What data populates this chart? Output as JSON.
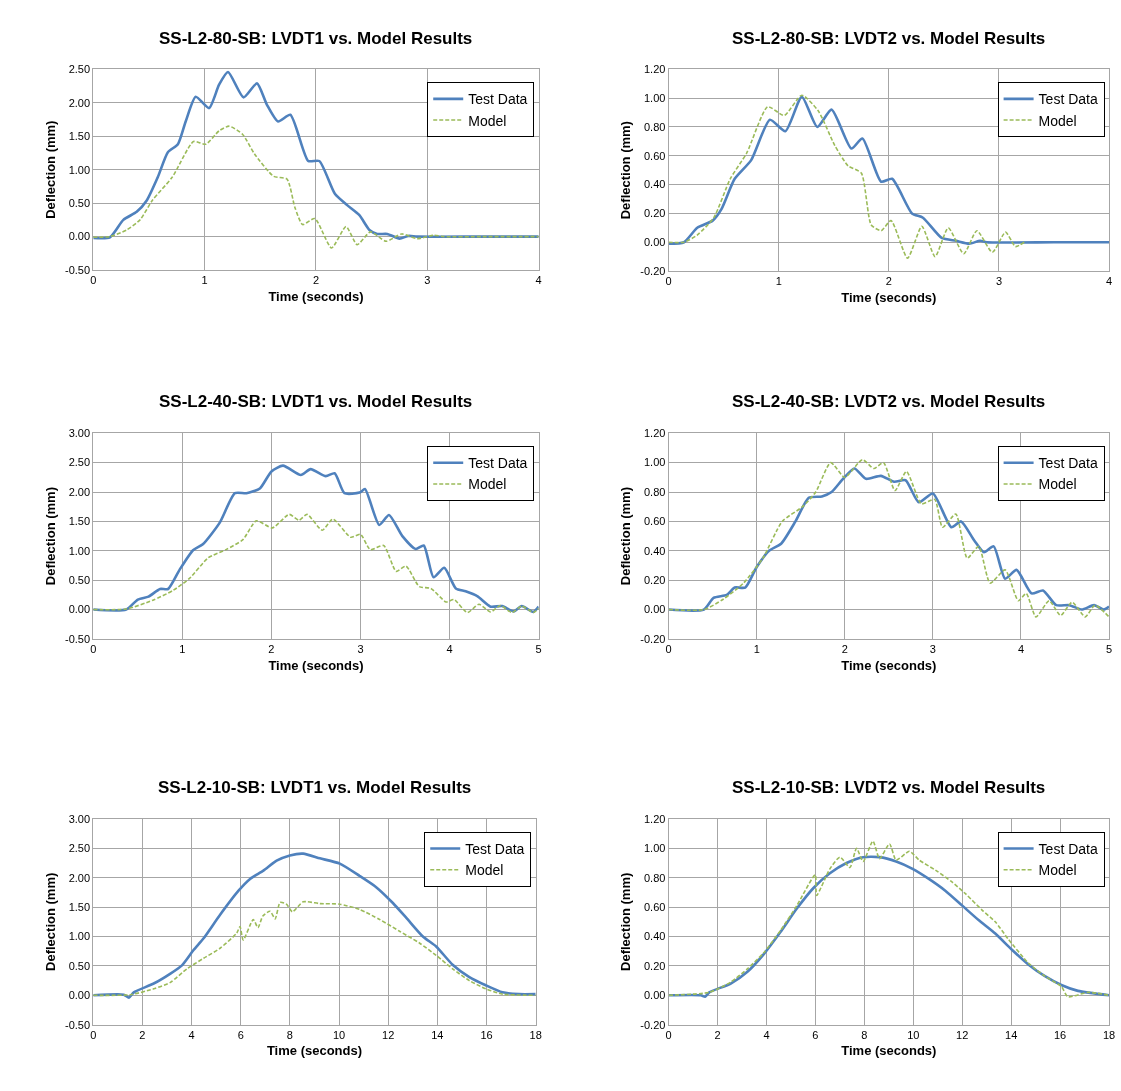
{
  "chart_data": [
    {
      "type": "line",
      "title": "SS-L2-80-SB: LVDT1 vs. Model Results",
      "xlabel": "Time (seconds)",
      "ylabel": "Deflection (mm)",
      "xlim": [
        0,
        4
      ],
      "ylim": [
        -0.5,
        2.5
      ],
      "xticks": [
        0,
        1,
        2,
        3,
        4
      ],
      "yticks": [
        {
          "value": -0.5,
          "label": "-0.50"
        },
        {
          "value": 0,
          "label": "0.00"
        },
        {
          "value": 0.5,
          "label": "0.50"
        },
        {
          "value": 1,
          "label": "1.00"
        },
        {
          "value": 1.5,
          "label": "1.50"
        },
        {
          "value": 2,
          "label": "2.00"
        },
        {
          "value": 2.5,
          "label": "2.50"
        }
      ],
      "grid": true,
      "legend": "top right",
      "series": [
        {
          "name": "Test Data",
          "color": "#4f81bd",
          "line_style": "solid",
          "x": [
            0,
            0.15,
            0.27,
            0.39,
            0.48,
            0.58,
            0.67,
            0.76,
            0.83,
            0.92,
            1.04,
            1.13,
            1.21,
            1.35,
            1.47,
            1.56,
            1.66,
            1.77,
            1.93,
            2.03,
            2.17,
            2.28,
            2.39,
            2.48,
            2.55,
            2.64,
            2.75,
            2.83,
            2.91,
            3.5,
            4
          ],
          "values": [
            -0.02,
            -0.01,
            0.25,
            0.37,
            0.54,
            0.89,
            1.26,
            1.38,
            1.72,
            2.09,
            1.92,
            2.27,
            2.46,
            2.08,
            2.29,
            1.97,
            1.72,
            1.82,
            1.13,
            1.13,
            0.64,
            0.47,
            0.32,
            0.1,
            0.04,
            0.04,
            -0.03,
            0.01,
            0,
            0,
            0
          ]
        },
        {
          "name": "Model",
          "color": "#9bbb59",
          "line_style": "dashed",
          "x": [
            0,
            0.15,
            0.3,
            0.42,
            0.53,
            0.71,
            0.9,
            1.01,
            1.13,
            1.22,
            1.34,
            1.45,
            1.62,
            1.74,
            1.81,
            1.88,
            1.99,
            2.14,
            2.27,
            2.37,
            2.49,
            2.63,
            2.77,
            2.91,
            3.06,
            3.15,
            3.5,
            4
          ],
          "values": [
            -0.01,
            0,
            0.1,
            0.25,
            0.54,
            0.89,
            1.42,
            1.38,
            1.58,
            1.65,
            1.53,
            1.23,
            0.9,
            0.86,
            0.44,
            0.18,
            0.27,
            -0.17,
            0.15,
            -0.12,
            0.07,
            -0.07,
            0.04,
            -0.03,
            0.02,
            0,
            0,
            0
          ]
        }
      ]
    },
    {
      "type": "line",
      "title": "SS-L2-80-SB: LVDT2 vs. Model Results",
      "xlabel": "Time (seconds)",
      "ylabel": "Deflection (mm)",
      "xlim": [
        0,
        4
      ],
      "ylim": [
        -0.2,
        1.2
      ],
      "xticks": [
        0,
        1,
        2,
        3,
        4
      ],
      "yticks": [
        {
          "value": -0.2,
          "label": "-0.20"
        },
        {
          "value": 0,
          "label": "0.00"
        },
        {
          "value": 0.2,
          "label": "0.20"
        },
        {
          "value": 0.4,
          "label": "0.40"
        },
        {
          "value": 0.6,
          "label": "0.60"
        },
        {
          "value": 0.8,
          "label": "0.80"
        },
        {
          "value": 1,
          "label": "1.00"
        },
        {
          "value": 1.2,
          "label": "1.20"
        }
      ],
      "grid": true,
      "legend": "top right",
      "series": [
        {
          "name": "Test Data",
          "color": "#4f81bd",
          "line_style": "solid",
          "x": [
            0,
            0.14,
            0.26,
            0.4,
            0.48,
            0.6,
            0.75,
            0.92,
            1.06,
            1.21,
            1.35,
            1.48,
            1.66,
            1.76,
            1.93,
            2.03,
            2.21,
            2.31,
            2.48,
            2.61,
            2.73,
            2.83,
            2.89,
            3.5,
            4
          ],
          "values": [
            -0.01,
            0,
            0.1,
            0.15,
            0.23,
            0.44,
            0.57,
            0.85,
            0.77,
            1.01,
            0.8,
            0.92,
            0.65,
            0.72,
            0.42,
            0.44,
            0.2,
            0.17,
            0.03,
            0.01,
            -0.01,
            0.01,
            0,
            0,
            0
          ]
        },
        {
          "name": "Model",
          "color": "#9bbb59",
          "line_style": "dashed",
          "x": [
            0,
            0.14,
            0.26,
            0.41,
            0.56,
            0.71,
            0.9,
            1.05,
            1.21,
            1.36,
            1.51,
            1.63,
            1.75,
            1.84,
            1.93,
            2.02,
            2.17,
            2.3,
            2.42,
            2.54,
            2.68,
            2.8,
            2.94,
            3.06,
            3.15,
            3.23
          ],
          "values": [
            0,
            0,
            0.05,
            0.17,
            0.44,
            0.62,
            0.94,
            0.88,
            1.02,
            0.91,
            0.67,
            0.53,
            0.48,
            0.12,
            0.08,
            0.15,
            -0.11,
            0.11,
            -0.1,
            0.1,
            -0.08,
            0.08,
            -0.07,
            0.07,
            -0.03,
            0
          ]
        }
      ]
    },
    {
      "type": "line",
      "title": "SS-L2-40-SB: LVDT1 vs. Model Results",
      "xlabel": "Time (seconds)",
      "ylabel": "Deflection (mm)",
      "xlim": [
        0,
        5
      ],
      "ylim": [
        -0.5,
        3
      ],
      "xticks": [
        0,
        1,
        2,
        3,
        4,
        5
      ],
      "yticks": [
        {
          "value": -0.5,
          "label": "-0.50"
        },
        {
          "value": 0,
          "label": "0.00"
        },
        {
          "value": 0.5,
          "label": "0.50"
        },
        {
          "value": 1,
          "label": "1.00"
        },
        {
          "value": 1.5,
          "label": "1.50"
        },
        {
          "value": 2,
          "label": "2.00"
        },
        {
          "value": 2.5,
          "label": "2.50"
        },
        {
          "value": 3,
          "label": "3.00"
        }
      ],
      "grid": true,
      "legend": "top right",
      "series": [
        {
          "name": "Test Data",
          "color": "#4f81bd",
          "line_style": "solid",
          "x": [
            0,
            0.37,
            0.5,
            0.62,
            0.75,
            0.84,
            0.97,
            1.12,
            1.23,
            1.42,
            1.59,
            1.72,
            1.87,
            2.0,
            2.13,
            2.33,
            2.44,
            2.61,
            2.71,
            2.82,
            2.99,
            3.05,
            3.21,
            3.32,
            3.47,
            3.62,
            3.71,
            3.82,
            3.94,
            4.07,
            4.18,
            4.31,
            4.46,
            4.59,
            4.72,
            4.81,
            4.94,
            5
          ],
          "values": [
            0,
            0,
            0.17,
            0.22,
            0.35,
            0.35,
            0.68,
            1.01,
            1.11,
            1.48,
            1.98,
            1.98,
            2.06,
            2.35,
            2.45,
            2.29,
            2.39,
            2.27,
            2.32,
            1.98,
            1.99,
            2.05,
            1.44,
            1.61,
            1.25,
            1.03,
            1.09,
            0.55,
            0.71,
            0.36,
            0.31,
            0.23,
            0.05,
            0.06,
            -0.03,
            0.06,
            -0.04,
            0.05
          ]
        },
        {
          "name": "Model",
          "color": "#9bbb59",
          "line_style": "dashed",
          "x": [
            0,
            0.37,
            0.67,
            0.9,
            1.08,
            1.29,
            1.49,
            1.68,
            1.83,
            2.01,
            2.2,
            2.31,
            2.4,
            2.57,
            2.69,
            2.89,
            3.0,
            3.11,
            3.26,
            3.4,
            3.51,
            3.66,
            3.79,
            3.96,
            4.05,
            4.2,
            4.33,
            4.46,
            4.57,
            4.7,
            4.81,
            4.94,
            5
          ],
          "values": [
            0,
            0.01,
            0.16,
            0.33,
            0.53,
            0.88,
            1.02,
            1.19,
            1.51,
            1.39,
            1.62,
            1.52,
            1.62,
            1.35,
            1.54,
            1.23,
            1.28,
            1.02,
            1.09,
            0.65,
            0.74,
            0.39,
            0.36,
            0.13,
            0.17,
            -0.05,
            0.09,
            -0.04,
            0.07,
            -0.05,
            0.06,
            -0.05,
            0.02
          ]
        }
      ]
    },
    {
      "type": "line",
      "title": "SS-L2-40-SB: LVDT2 vs. Model Results",
      "xlabel": "Time (seconds)",
      "ylabel": "Deflection (mm)",
      "xlim": [
        0,
        5
      ],
      "ylim": [
        -0.2,
        1.2
      ],
      "xticks": [
        0,
        1,
        2,
        3,
        4,
        5
      ],
      "yticks": [
        {
          "value": -0.2,
          "label": "-0.20"
        },
        {
          "value": 0,
          "label": "0.00"
        },
        {
          "value": 0.2,
          "label": "0.20"
        },
        {
          "value": 0.4,
          "label": "0.40"
        },
        {
          "value": 0.6,
          "label": "0.60"
        },
        {
          "value": 0.8,
          "label": "0.80"
        },
        {
          "value": 1,
          "label": "1.00"
        },
        {
          "value": 1.2,
          "label": "1.20"
        }
      ],
      "grid": true,
      "legend": "top right",
      "series": [
        {
          "name": "Test Data",
          "color": "#4f81bd",
          "line_style": "solid",
          "x": [
            0,
            0.4,
            0.51,
            0.66,
            0.75,
            0.87,
            1.0,
            1.14,
            1.28,
            1.44,
            1.59,
            1.74,
            1.85,
            1.98,
            2.11,
            2.24,
            2.41,
            2.56,
            2.69,
            2.84,
            3.0,
            3.21,
            3.32,
            3.47,
            3.58,
            3.69,
            3.82,
            3.95,
            4.12,
            4.25,
            4.4,
            4.55,
            4.69,
            4.83,
            4.94,
            5
          ],
          "values": [
            0,
            0,
            0.08,
            0.1,
            0.15,
            0.15,
            0.29,
            0.4,
            0.45,
            0.6,
            0.76,
            0.77,
            0.8,
            0.89,
            0.96,
            0.89,
            0.91,
            0.87,
            0.88,
            0.73,
            0.79,
            0.56,
            0.6,
            0.47,
            0.39,
            0.43,
            0.21,
            0.27,
            0.11,
            0.13,
            0.03,
            0.03,
            0,
            0.03,
            0,
            0.02
          ]
        },
        {
          "name": "Model",
          "color": "#9bbb59",
          "line_style": "dashed",
          "x": [
            0,
            0.4,
            0.62,
            0.85,
            1.07,
            1.29,
            1.52,
            1.67,
            1.84,
            2.0,
            2.2,
            2.33,
            2.44,
            2.57,
            2.7,
            2.87,
            3.02,
            3.11,
            3.26,
            3.39,
            3.52,
            3.65,
            3.82,
            3.97,
            4.06,
            4.17,
            4.32,
            4.45,
            4.58,
            4.73,
            4.84,
            5
          ],
          "values": [
            0,
            0,
            0.07,
            0.18,
            0.35,
            0.6,
            0.7,
            0.8,
            1.0,
            0.9,
            1.02,
            0.96,
            1.0,
            0.81,
            0.94,
            0.72,
            0.75,
            0.56,
            0.65,
            0.35,
            0.43,
            0.18,
            0.27,
            0.06,
            0.11,
            -0.05,
            0.06,
            -0.04,
            0.05,
            -0.05,
            0.03,
            -0.05
          ]
        }
      ]
    },
    {
      "type": "line",
      "title": "SS-L2-10-SB: LVDT1 vs. Model Results",
      "xlabel": "Time (seconds)",
      "ylabel": "Deflection (mm)",
      "xlim": [
        0,
        18
      ],
      "ylim": [
        -0.5,
        3
      ],
      "xticks": [
        0,
        2,
        4,
        6,
        8,
        10,
        12,
        14,
        16,
        18
      ],
      "yticks": [
        {
          "value": -0.5,
          "label": "-0.50"
        },
        {
          "value": 0,
          "label": "0.00"
        },
        {
          "value": 0.5,
          "label": "0.50"
        },
        {
          "value": 1,
          "label": "1.00"
        },
        {
          "value": 1.5,
          "label": "1.50"
        },
        {
          "value": 2,
          "label": "2.00"
        },
        {
          "value": 2.5,
          "label": "2.50"
        },
        {
          "value": 3,
          "label": "3.00"
        }
      ],
      "grid": true,
      "legend": "top right",
      "series": [
        {
          "name": "Test Data",
          "color": "#4f81bd",
          "line_style": "solid",
          "x": [
            0,
            1.24,
            1.45,
            1.65,
            2.46,
            3.14,
            3.61,
            4.08,
            4.49,
            5.16,
            5.91,
            6.38,
            6.92,
            7.46,
            8.0,
            8.54,
            9.22,
            10.03,
            10.84,
            11.51,
            12.19,
            12.73,
            13.41,
            13.95,
            14.62,
            15.3,
            15.97,
            16.65,
            17.32,
            18
          ],
          "values": [
            0,
            0.01,
            -0.04,
            0.05,
            0.2,
            0.37,
            0.51,
            0.77,
            0.97,
            1.37,
            1.78,
            1.98,
            2.12,
            2.29,
            2.38,
            2.41,
            2.33,
            2.24,
            2.03,
            1.84,
            1.57,
            1.32,
            1.0,
            0.83,
            0.52,
            0.31,
            0.17,
            0.05,
            0.02,
            0.02
          ]
        },
        {
          "name": "Model",
          "color": "#9bbb59",
          "line_style": "dashed",
          "x": [
            0,
            1.51,
            2.46,
            3.14,
            3.81,
            4.49,
            5.16,
            5.84,
            5.97,
            6.1,
            6.51,
            6.7,
            6.9,
            7.19,
            7.4,
            7.6,
            7.86,
            8.1,
            8.54,
            9.22,
            10.03,
            10.84,
            11.65,
            12.46,
            13.27,
            13.95,
            14.62,
            15.3,
            15.97,
            16.65,
            18
          ],
          "values": [
            0,
            0.01,
            0.11,
            0.22,
            0.45,
            0.63,
            0.8,
            1.06,
            1.17,
            0.94,
            1.29,
            1.15,
            1.35,
            1.43,
            1.3,
            1.58,
            1.55,
            1.42,
            1.59,
            1.56,
            1.55,
            1.46,
            1.29,
            1.09,
            0.89,
            0.68,
            0.45,
            0.25,
            0.11,
            0.02,
            0
          ]
        }
      ]
    },
    {
      "type": "line",
      "title": "SS-L2-10-SB: LVDT2 vs. Model Results",
      "xlabel": "Time (seconds)",
      "ylabel": "Deflection (mm)",
      "xlim": [
        0,
        18
      ],
      "ylim": [
        -0.2,
        1.2
      ],
      "xticks": [
        0,
        2,
        4,
        6,
        8,
        10,
        12,
        14,
        16,
        18
      ],
      "yticks": [
        {
          "value": -0.2,
          "label": "-0.20"
        },
        {
          "value": 0,
          "label": "0.00"
        },
        {
          "value": 0.2,
          "label": "0.20"
        },
        {
          "value": 0.4,
          "label": "0.40"
        },
        {
          "value": 0.6,
          "label": "0.60"
        },
        {
          "value": 0.8,
          "label": "0.80"
        },
        {
          "value": 1,
          "label": "1.00"
        },
        {
          "value": 1.2,
          "label": "1.20"
        }
      ],
      "grid": true,
      "legend": "top right",
      "series": [
        {
          "name": "Test Data",
          "color": "#4f81bd",
          "line_style": "solid",
          "x": [
            0,
            1.32,
            1.49,
            1.66,
            2.54,
            3.22,
            3.89,
            4.57,
            5.24,
            5.92,
            6.59,
            7.27,
            7.95,
            8.62,
            9.3,
            9.97,
            10.65,
            11.32,
            12.0,
            12.68,
            13.35,
            14.03,
            14.7,
            15.38,
            16.05,
            16.73,
            18
          ],
          "values": [
            0,
            0,
            -0.01,
            0.02,
            0.08,
            0.16,
            0.28,
            0.43,
            0.59,
            0.73,
            0.83,
            0.9,
            0.94,
            0.94,
            0.91,
            0.86,
            0.79,
            0.71,
            0.61,
            0.51,
            0.42,
            0.31,
            0.21,
            0.13,
            0.07,
            0.03,
            0
          ]
        },
        {
          "name": "Model",
          "color": "#9bbb59",
          "line_style": "dashed",
          "x": [
            0,
            1.66,
            2.54,
            3.22,
            3.89,
            4.57,
            5.24,
            5.99,
            6.05,
            6.59,
            7.0,
            7.41,
            7.68,
            7.95,
            8.35,
            8.62,
            9.03,
            9.3,
            9.84,
            10.24,
            10.92,
            11.59,
            12.14,
            12.81,
            13.35,
            13.89,
            14.7,
            15.38,
            16.05,
            16.32,
            17.14,
            18
          ],
          "values": [
            0,
            0.02,
            0.09,
            0.18,
            0.29,
            0.44,
            0.61,
            0.82,
            0.68,
            0.86,
            0.94,
            0.87,
            1.0,
            0.91,
            1.05,
            0.93,
            1.03,
            0.92,
            0.98,
            0.92,
            0.85,
            0.77,
            0.69,
            0.58,
            0.5,
            0.38,
            0.22,
            0.13,
            0.06,
            -0.01,
            0.02,
            0
          ]
        }
      ]
    }
  ]
}
